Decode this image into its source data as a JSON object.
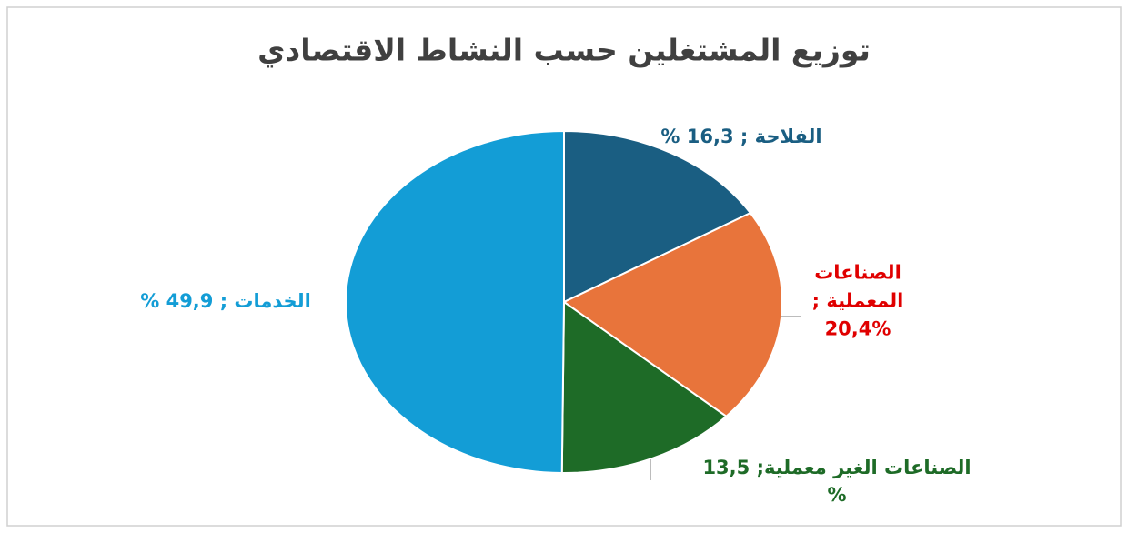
{
  "chart_data": {
    "type": "pie",
    "title": "توزيع المشتغلين حسب النشاط الاقتصادي",
    "values": [
      16.3,
      20.4,
      13.5,
      49.9
    ],
    "value_labels": [
      "الفلاحة ; 16,3 %",
      "الصناعات\nالمعملية ;\n20,4%",
      "الصناعات الغير معملية; 13,5 %",
      "الخدمات ; 49,9 %"
    ],
    "colors": [
      "#1a5e82",
      "#e8743b",
      "#1e6b27",
      "#139dd6"
    ],
    "label_colors": [
      "#1a5e82",
      "#e00000",
      "#1e6b27",
      "#139dd6"
    ]
  }
}
